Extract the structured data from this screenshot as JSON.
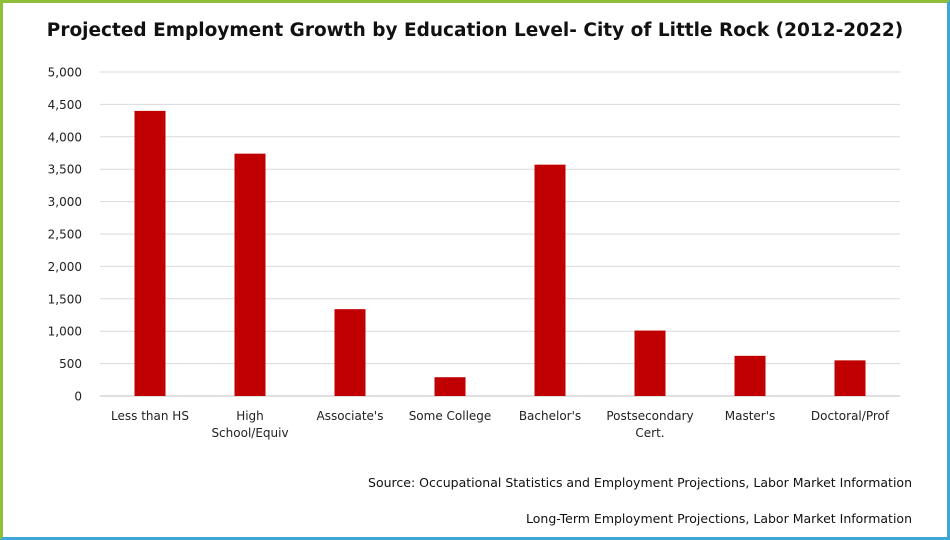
{
  "chart_data": {
    "type": "bar",
    "title": "Projected Employment Growth by Education Level- City of Little Rock (2012-2022)",
    "categories": [
      [
        "Less than HS"
      ],
      [
        "High",
        "School/Equiv"
      ],
      [
        "Associate's"
      ],
      [
        "Some College"
      ],
      [
        "Bachelor's"
      ],
      [
        "Postsecondary",
        "Cert."
      ],
      [
        "Master's"
      ],
      [
        "Doctoral/Prof"
      ]
    ],
    "values": [
      4400,
      3740,
      1340,
      290,
      3570,
      1010,
      620,
      550
    ],
    "ylim": [
      0,
      5000
    ],
    "yticks": [
      "0",
      "500",
      "1,000",
      "1,500",
      "2,000",
      "2,500",
      "3,000",
      "3,500",
      "4,000",
      "4,500",
      "5,000"
    ],
    "ytick_values": [
      0,
      500,
      1000,
      1500,
      2000,
      2500,
      3000,
      3500,
      4000,
      4500,
      5000
    ],
    "grid": true,
    "bar_color": "#c00000",
    "grid_color": "#d9d9d9"
  },
  "sources": [
    "Source: Occupational Statistics and Employment Projections, Labor Market Information",
    "Long-Term Employment Projections, Labor Market Information"
  ]
}
